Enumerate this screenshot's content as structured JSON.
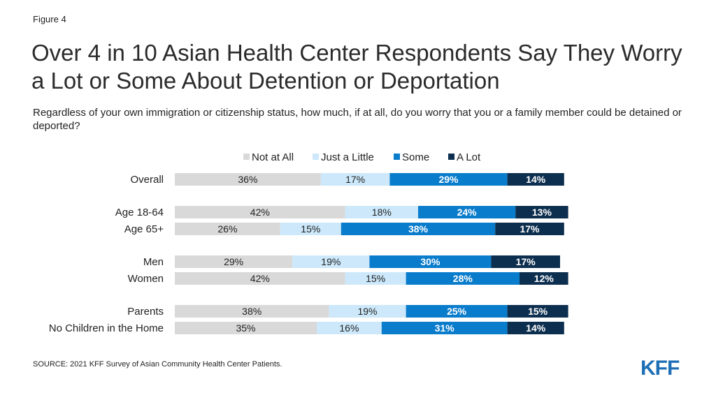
{
  "figure_label": "Figure 4",
  "title": "Over 4 in 10 Asian Health Center Respondents Say They Worry a Lot or Some About Detention or Deportation",
  "subtitle": "Regardless of your own immigration or citizenship status, how much, if at all, do you worry that you or a family member could be detained or deported?",
  "source": "SOURCE: 2021 KFF Survey of Asian Community Health Center Patients.",
  "logo_text": "KFF",
  "chart_data": {
    "type": "bar",
    "orientation": "horizontal",
    "stacked": true,
    "legend_position": "top",
    "series": [
      {
        "name": "Not at All",
        "color": "#d9d9d9",
        "label_color": "#222222",
        "values": [
          36,
          42,
          26,
          29,
          42,
          38,
          35
        ]
      },
      {
        "name": "Just a Little",
        "color": "#cce8fa",
        "label_color": "#222222",
        "values": [
          17,
          18,
          15,
          19,
          15,
          19,
          16
        ]
      },
      {
        "name": "Some",
        "color": "#0a7ccc",
        "label_color": "#ffffff",
        "values": [
          29,
          24,
          38,
          30,
          28,
          25,
          31
        ]
      },
      {
        "name": "A Lot",
        "color": "#0d2f4f",
        "label_color": "#ffffff",
        "values": [
          14,
          13,
          17,
          17,
          12,
          15,
          14
        ]
      }
    ],
    "categories": [
      "Overall",
      "Age 18-64",
      "Age 65+",
      "Men",
      "Women",
      "Parents",
      "No Children in the Home"
    ],
    "value_suffix": "%"
  }
}
